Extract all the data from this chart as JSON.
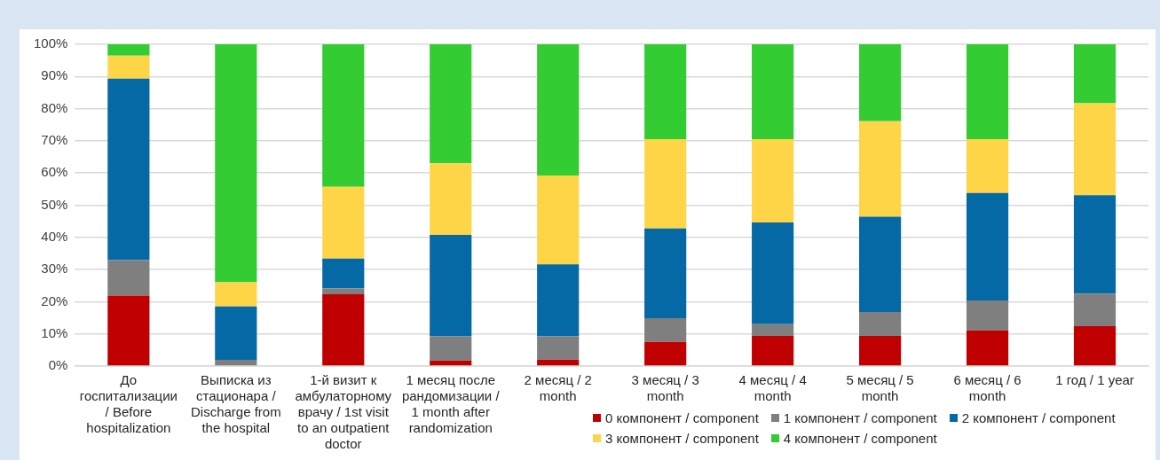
{
  "chart_data": {
    "type": "bar",
    "stacked": true,
    "categories": [
      "До госпитализации / Before hospitalization",
      "Выписка из стационара / Discharge from the hospital",
      "1-й визит к амбулаторному врачу / 1st visit to an outpatient doctor",
      "1 месяц после рандомизации / 1 month after randomization",
      "2 месяц / 2 month",
      "3 месяц / 3 month",
      "4 месяц / 4 month",
      "5 месяц / 5 month",
      "6 месяц / 6 month",
      "1 год / 1 year"
    ],
    "series": [
      {
        "name": "0 компонент / component",
        "color": "#c00000",
        "values": [
          21.9,
          0,
          22.3,
          1.7,
          2.0,
          7.5,
          9.4,
          9.4,
          11.1,
          12.4
        ]
      },
      {
        "name": "1 компонент / component",
        "color": "#7f7f7f",
        "values": [
          11.0,
          1.9,
          1.9,
          7.6,
          7.3,
          7.4,
          3.6,
          7.4,
          9.3,
          10.1
        ]
      },
      {
        "name": "2 компонент / component",
        "color": "#0569a5",
        "values": [
          56.4,
          16.6,
          9.2,
          31.5,
          22.3,
          27.9,
          31.6,
          29.6,
          33.4,
          30.6
        ]
      },
      {
        "name": "3 компонент / component",
        "color": "#ffd548",
        "values": [
          7.2,
          7.5,
          22.3,
          22.2,
          27.6,
          27.7,
          25.9,
          29.7,
          16.7,
          28.6
        ]
      },
      {
        "name": "4 компонент / component",
        "color": "#33cc33",
        "values": [
          3.5,
          74.0,
          44.3,
          37.0,
          40.8,
          29.5,
          29.5,
          23.9,
          29.5,
          18.3
        ]
      }
    ],
    "ylim": [
      0,
      100
    ],
    "yticks": [
      {
        "value": 0,
        "label": "0%"
      },
      {
        "value": 10,
        "label": "10%"
      },
      {
        "value": 20,
        "label": "20%"
      },
      {
        "value": 30,
        "label": "30%"
      },
      {
        "value": 40,
        "label": "40%"
      },
      {
        "value": 50,
        "label": "50%"
      },
      {
        "value": 60,
        "label": "60%"
      },
      {
        "value": 70,
        "label": "70%"
      },
      {
        "value": 80,
        "label": "80%"
      },
      {
        "value": 90,
        "label": "90%"
      },
      {
        "value": 100,
        "label": "100%"
      }
    ],
    "grid": "y",
    "legend": "bottom right"
  }
}
